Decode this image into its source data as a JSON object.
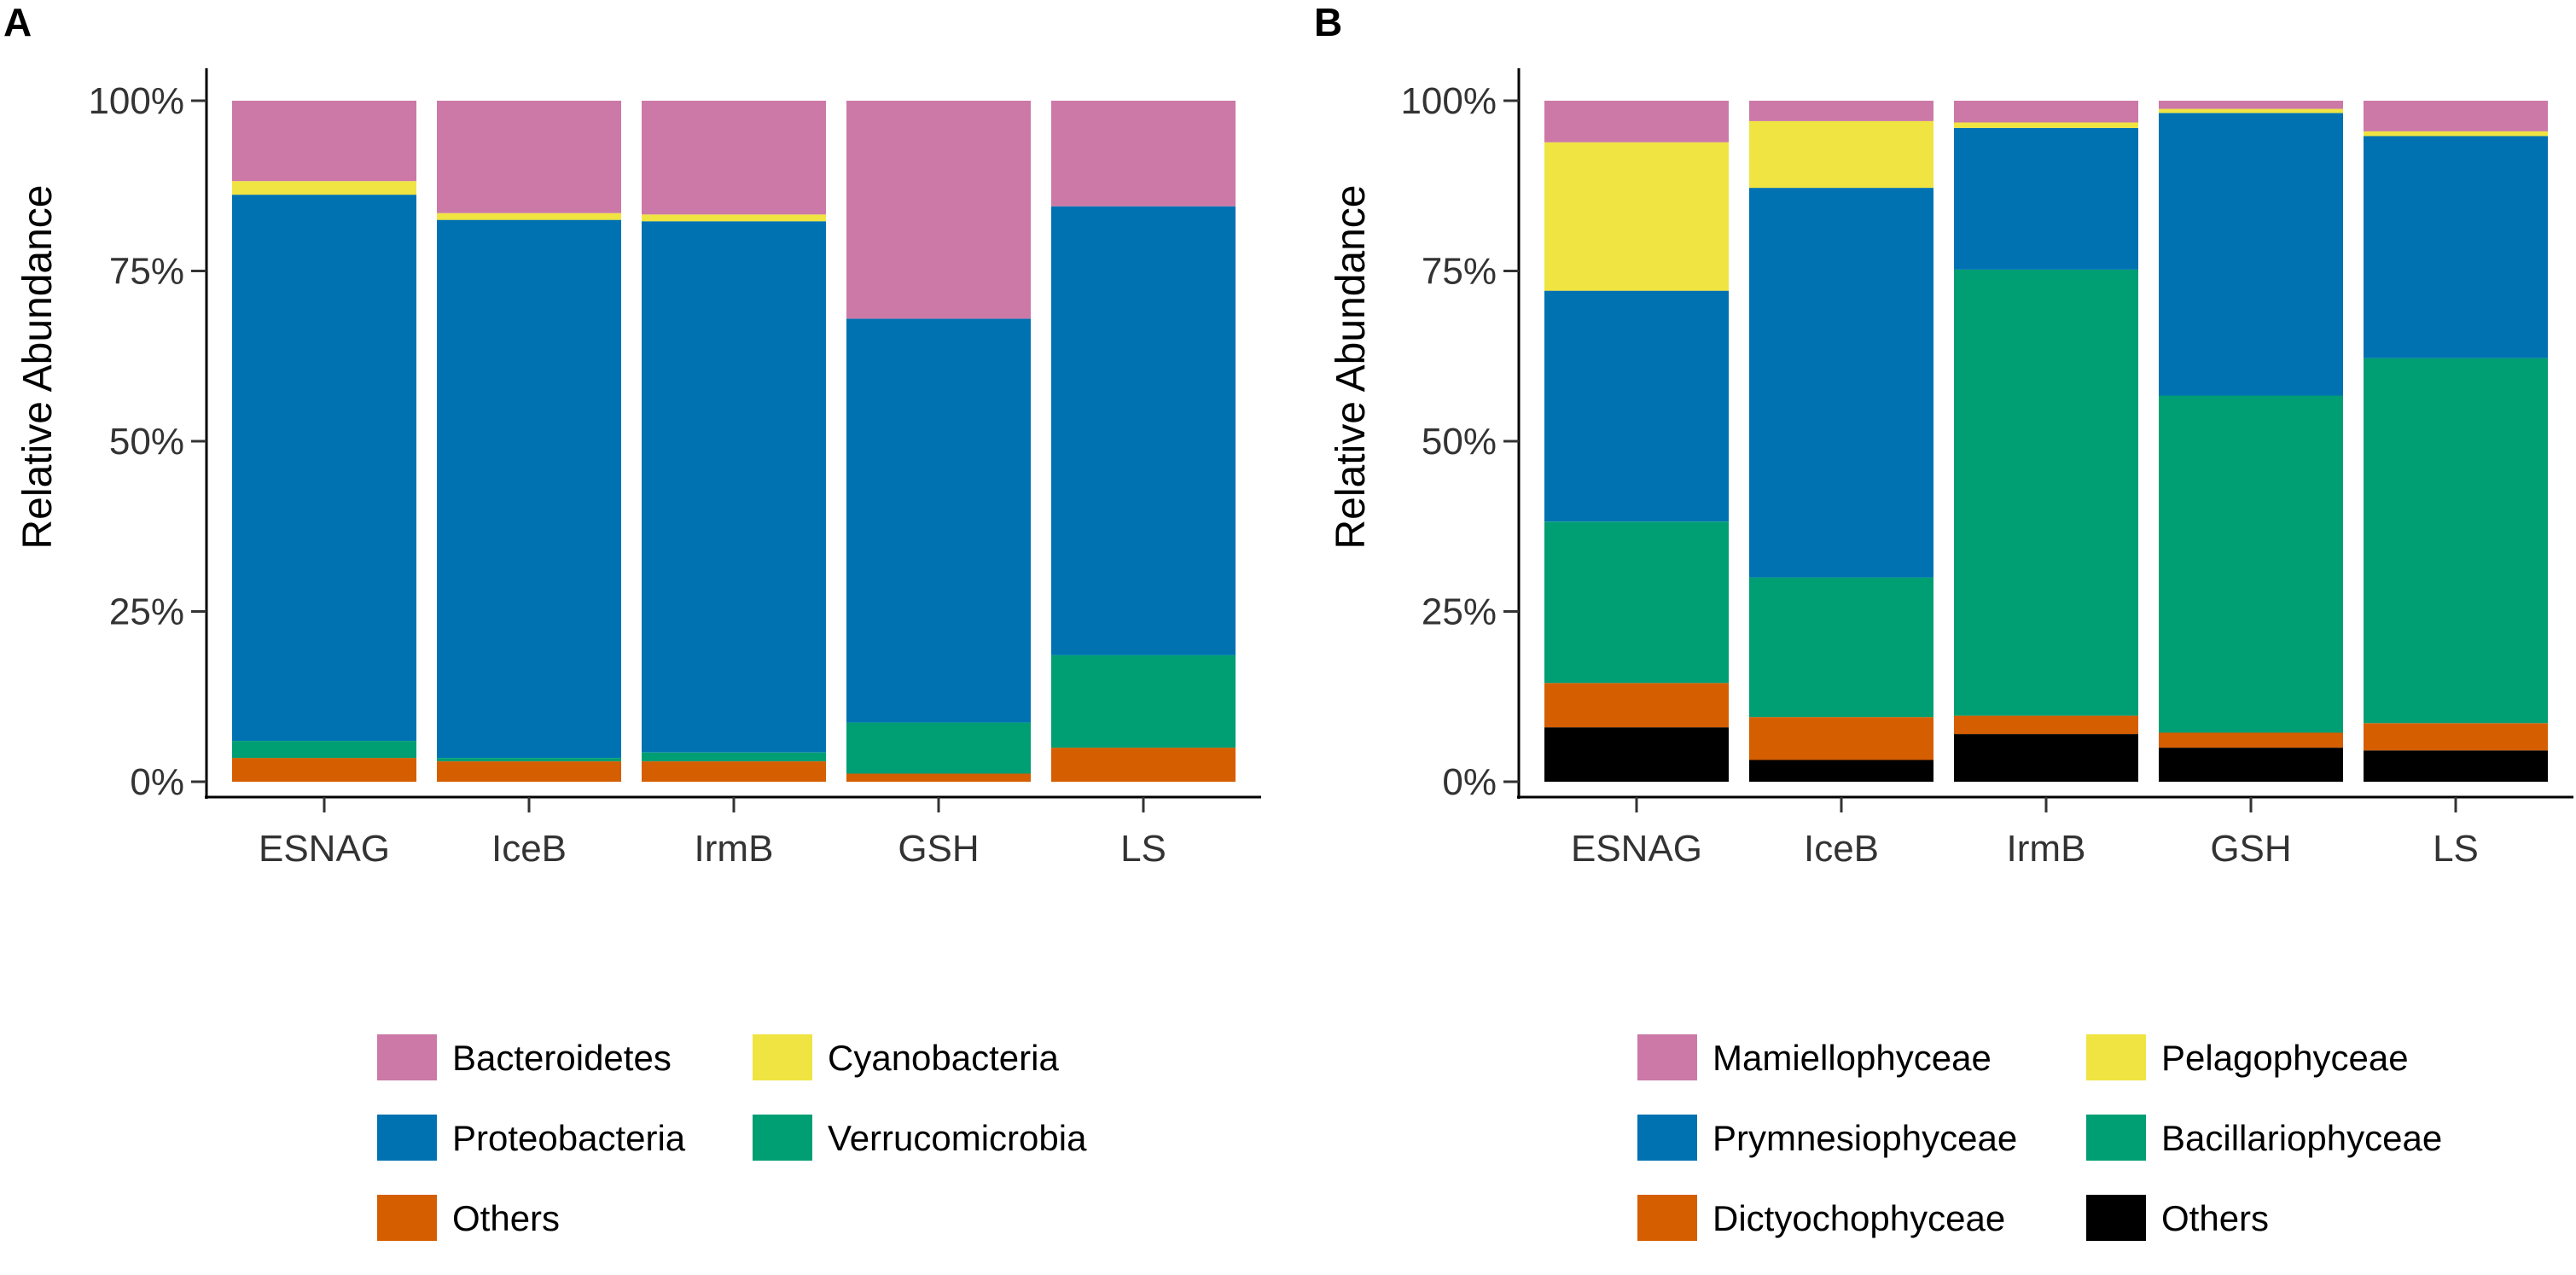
{
  "chart_data": [
    {
      "type": "bar",
      "stacked": true,
      "panel": "A",
      "title": "",
      "xlabel": "",
      "ylabel": "Relative Abundance",
      "ylim": [
        0,
        1
      ],
      "yticks": [
        "0%",
        "25%",
        "50%",
        "75%",
        "100%"
      ],
      "categories": [
        "ESNAG",
        "IceB",
        "IrmB",
        "GSH",
        "LS"
      ],
      "series": [
        {
          "name": "Others",
          "color": "#D55E00",
          "values": [
            0.035,
            0.03,
            0.03,
            0.012,
            0.05
          ]
        },
        {
          "name": "Verrucomicrobia",
          "color": "#009E73",
          "values": [
            0.025,
            0.005,
            0.013,
            0.075,
            0.136
          ]
        },
        {
          "name": "Proteobacteria",
          "color": "#0072B2",
          "values": [
            0.802,
            0.79,
            0.78,
            0.593,
            0.659
          ]
        },
        {
          "name": "Cyanobacteria",
          "color": "#F0E442",
          "values": [
            0.02,
            0.01,
            0.01,
            0.0,
            0.0
          ]
        },
        {
          "name": "Bacteroidetes",
          "color": "#CC79A7",
          "values": [
            0.118,
            0.165,
            0.167,
            0.32,
            0.155
          ]
        }
      ],
      "legend": [
        "Bacteroidetes",
        "Cyanobacteria",
        "Proteobacteria",
        "Verrucomicrobia",
        "Others"
      ]
    },
    {
      "type": "bar",
      "stacked": true,
      "panel": "B",
      "title": "",
      "xlabel": "",
      "ylabel": "Relative Abundance",
      "ylim": [
        0,
        1
      ],
      "yticks": [
        "0%",
        "25%",
        "50%",
        "75%",
        "100%"
      ],
      "categories": [
        "ESNAG",
        "IceB",
        "IrmB",
        "GSH",
        "LS"
      ],
      "series": [
        {
          "name": "Others",
          "color": "#000000",
          "values": [
            0.08,
            0.032,
            0.07,
            0.05,
            0.046
          ]
        },
        {
          "name": "Dictyochophyceae",
          "color": "#D55E00",
          "values": [
            0.065,
            0.063,
            0.027,
            0.022,
            0.04
          ]
        },
        {
          "name": "Bacillariophyceae",
          "color": "#009E73",
          "values": [
            0.237,
            0.205,
            0.655,
            0.495,
            0.536
          ]
        },
        {
          "name": "Prymnesiophyceae",
          "color": "#0072B2",
          "values": [
            0.339,
            0.572,
            0.208,
            0.415,
            0.326
          ]
        },
        {
          "name": "Pelagophyceae",
          "color": "#F0E442",
          "values": [
            0.218,
            0.098,
            0.008,
            0.006,
            0.007
          ]
        },
        {
          "name": "Mamiellophyceae",
          "color": "#CC79A7",
          "values": [
            0.061,
            0.03,
            0.032,
            0.012,
            0.045
          ]
        }
      ],
      "legend": [
        "Mamiellophyceae",
        "Pelagophyceae",
        "Prymnesiophyceae",
        "Bacillariophyceae",
        "Dictyochophyceae",
        "Others"
      ]
    }
  ]
}
